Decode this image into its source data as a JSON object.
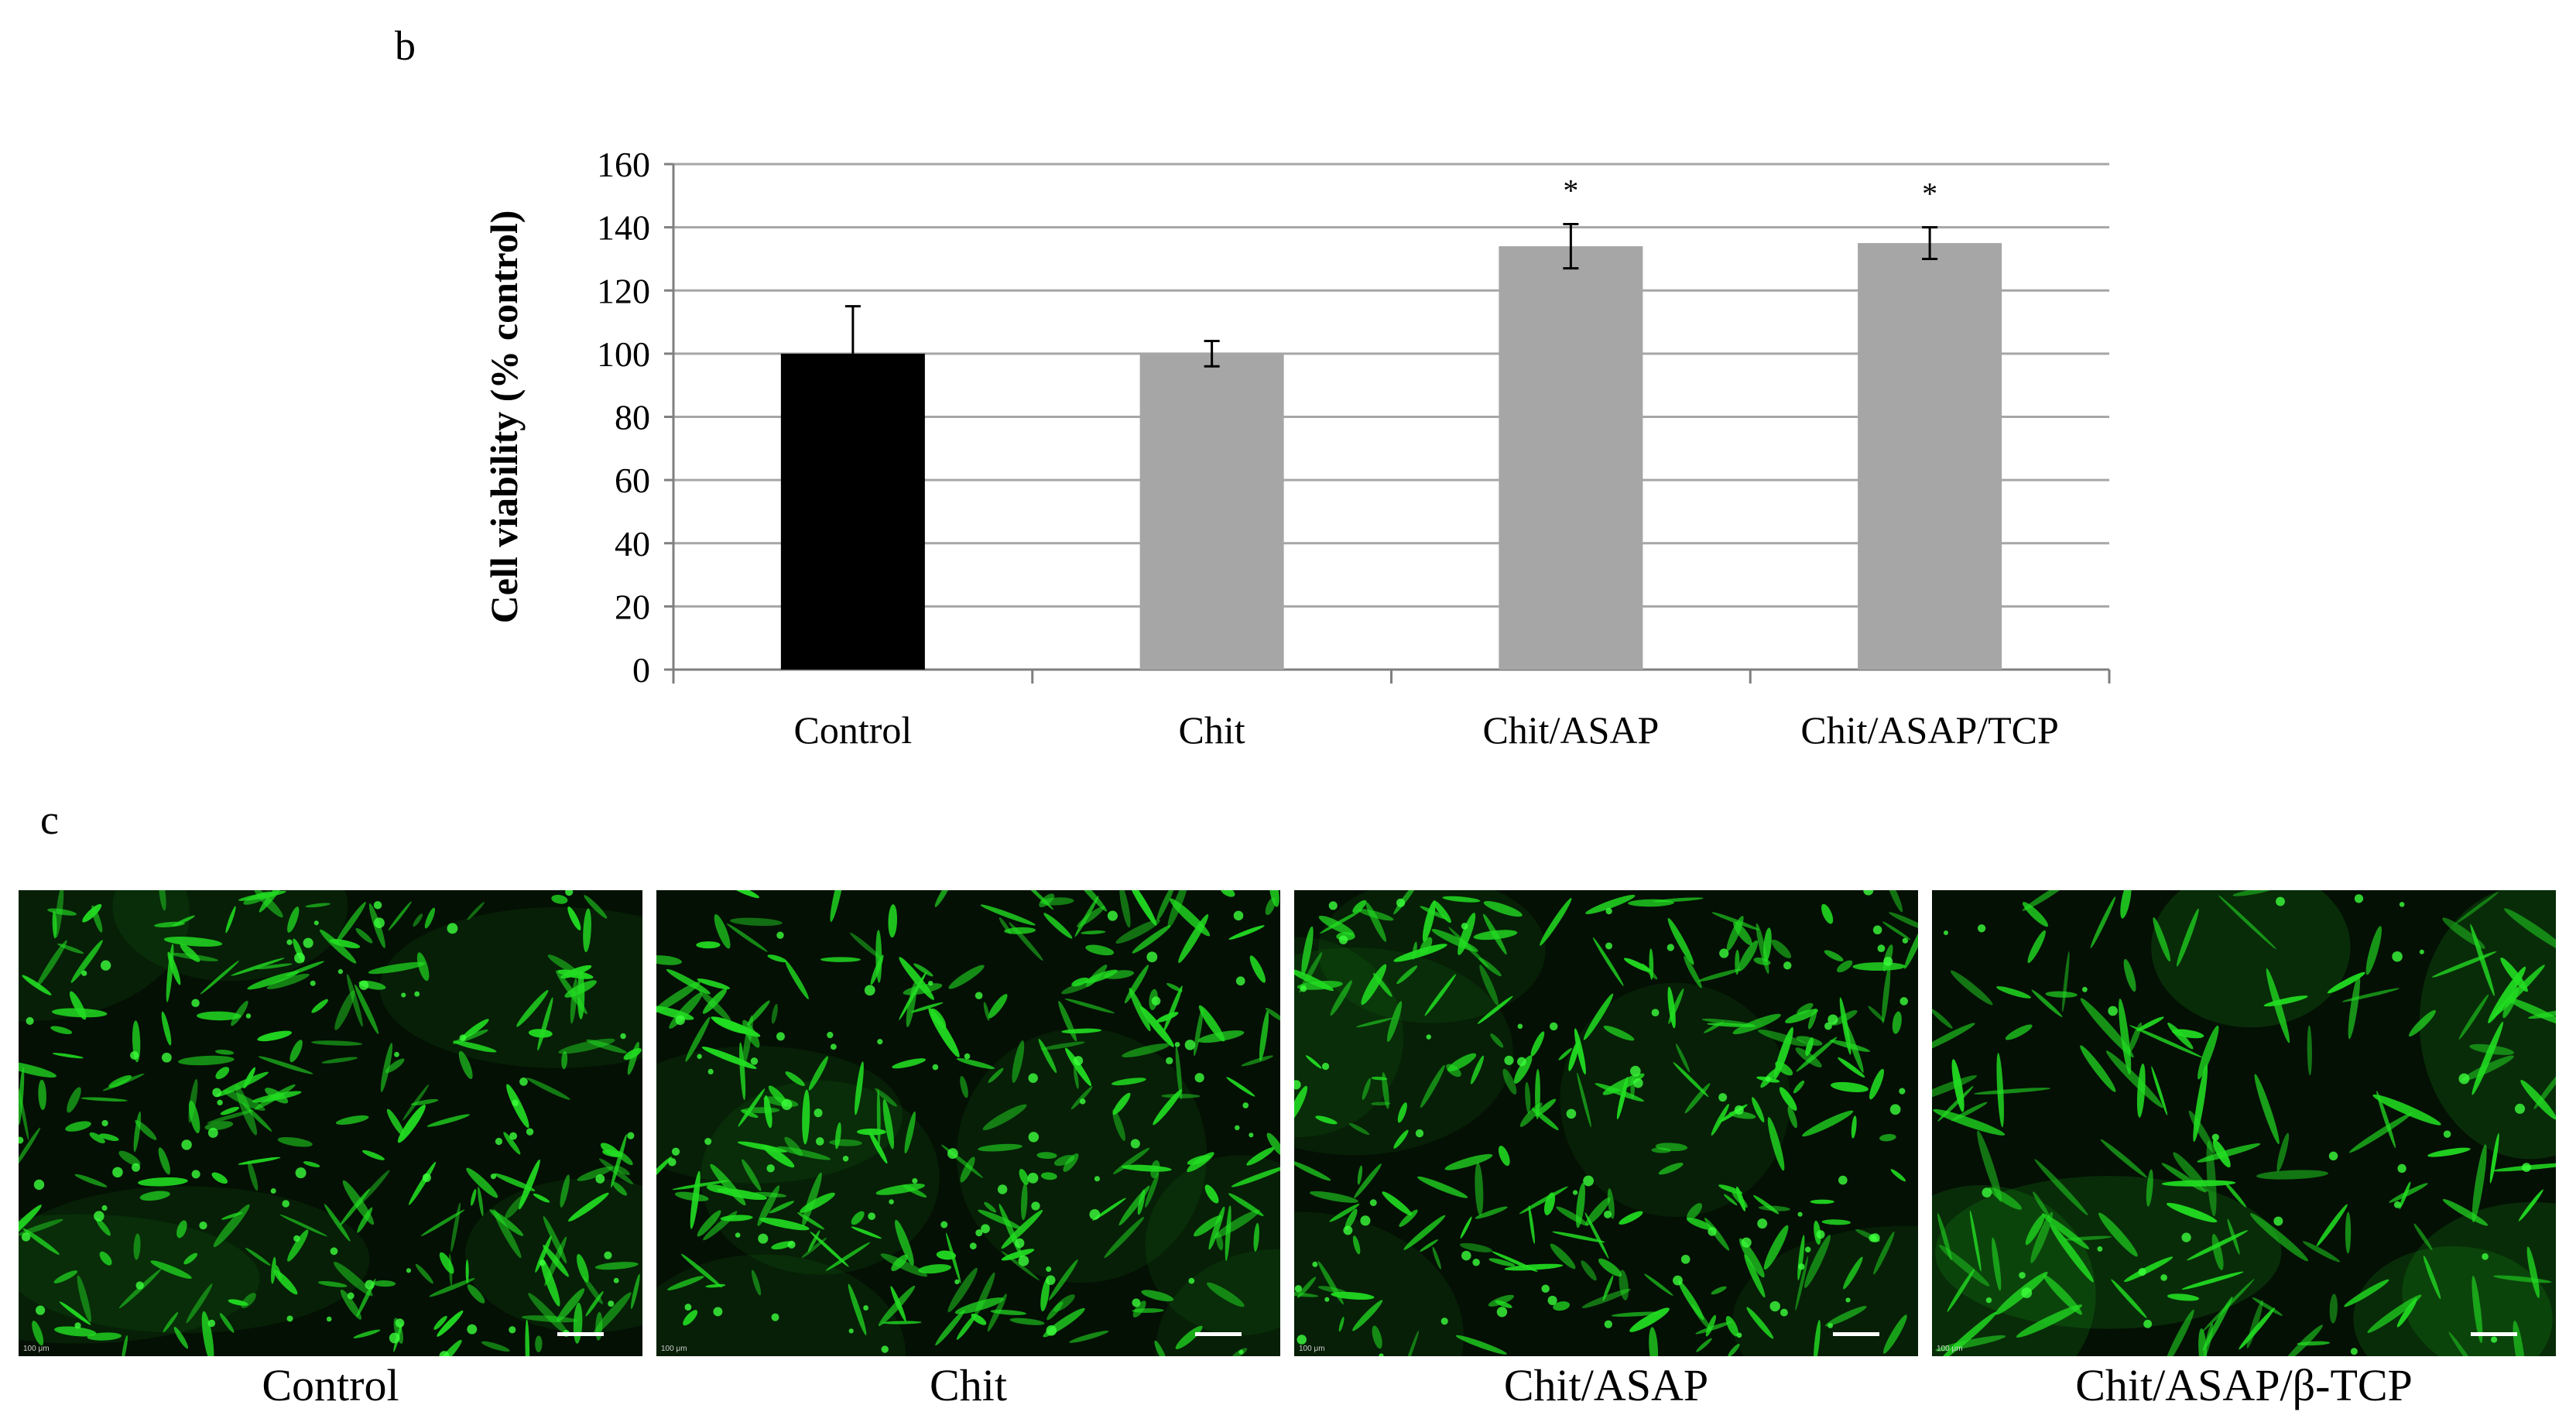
{
  "panels": {
    "b_label": "b",
    "c_label": "c"
  },
  "chart_data": {
    "type": "bar",
    "ylabel": "Cell viability  (% control)",
    "xlabel": "",
    "ylim": [
      0,
      160
    ],
    "yticks": [
      0,
      20,
      40,
      60,
      80,
      100,
      120,
      140,
      160
    ],
    "grid": true,
    "categories": [
      "Control",
      "Chit",
      "Chit/ASAP",
      "Chit/ASAP/TCP"
    ],
    "values": [
      100,
      100,
      134,
      135
    ],
    "errors_up": [
      15,
      4,
      7,
      5
    ],
    "errors_down": [
      0,
      4,
      7,
      5
    ],
    "annotations": [
      "",
      "",
      "*",
      "*"
    ],
    "colors": [
      "#000000",
      "#a6a6a6",
      "#a6a6a6",
      "#a6a6a6"
    ],
    "grid_color": "#a6a6a6"
  },
  "micrographs": [
    {
      "caption": "Control",
      "scale_text": "100 μm"
    },
    {
      "caption": "Chit",
      "scale_text": "100 μm"
    },
    {
      "caption": "Chit/ASAP",
      "scale_text": "100 μm"
    },
    {
      "caption": "Chit/ASAP/β-TCP",
      "scale_text": "100 μm"
    }
  ],
  "colors": {
    "fluorescence": "#22dd22",
    "micro_background": "#041004"
  }
}
